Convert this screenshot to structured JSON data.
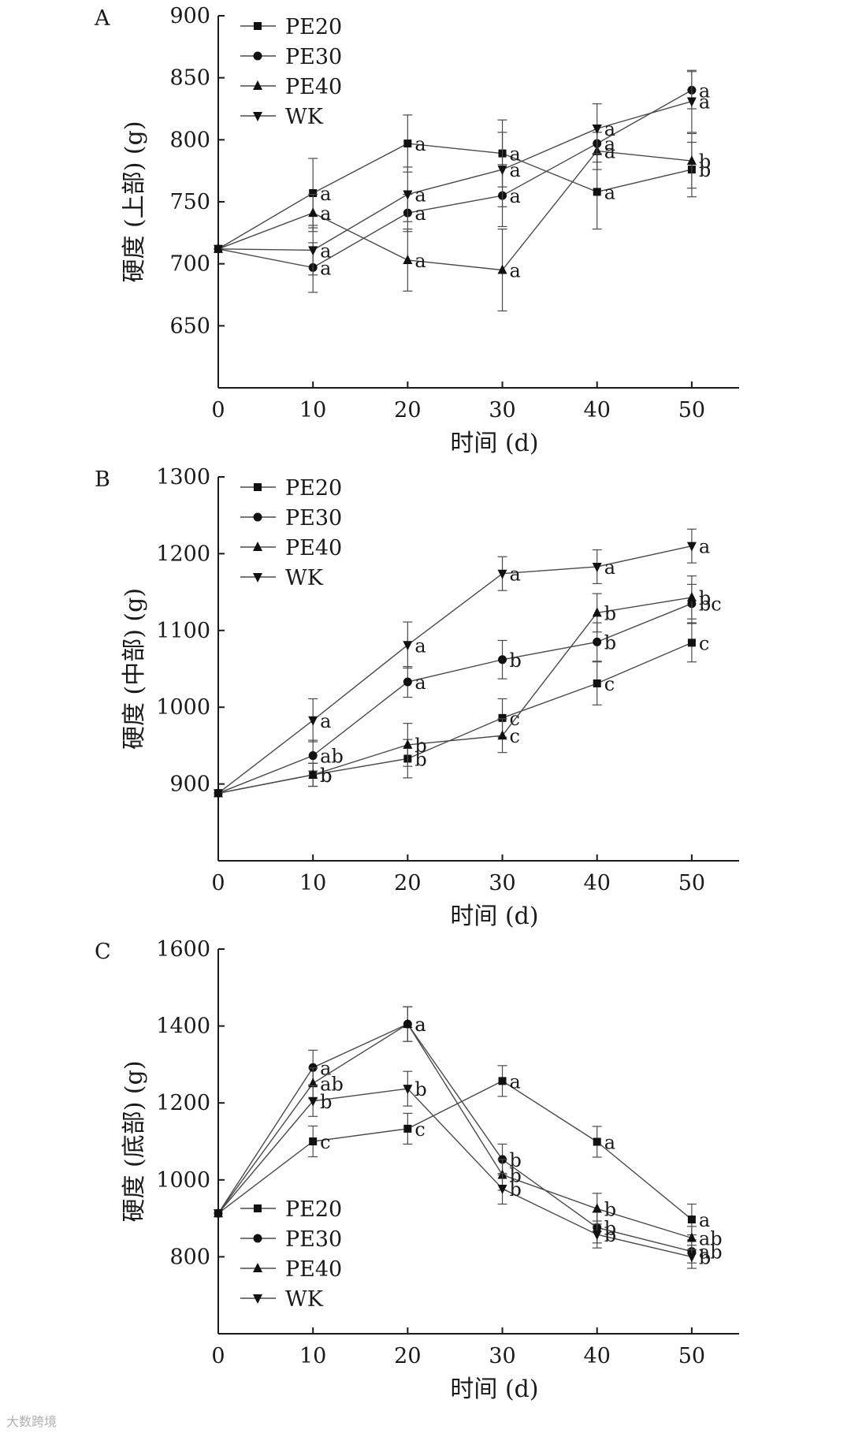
{
  "watermark": "大数跨境",
  "chart_data": [
    {
      "type": "line",
      "panel_label": "A",
      "xlabel": "时间 (d)",
      "ylabel": "硬度 (上部) (g)",
      "x": [
        0,
        10,
        20,
        30,
        40,
        50
      ],
      "xlim": [
        0,
        55
      ],
      "xticks": [
        0,
        10,
        20,
        30,
        40,
        50
      ],
      "ylim": [
        600,
        900
      ],
      "yticks": [
        650,
        700,
        750,
        800,
        850,
        900
      ],
      "legend_position": "top-left",
      "series": [
        {
          "name": "PE20",
          "marker": "square",
          "values": [
            712,
            757,
            797,
            789,
            758,
            776
          ],
          "errors": [
            0,
            28,
            23,
            27,
            30,
            22
          ],
          "letters": [
            "",
            "a",
            "a",
            "a",
            "a",
            "b"
          ]
        },
        {
          "name": "PE30",
          "marker": "circle",
          "values": [
            712,
            697,
            741,
            755,
            797,
            840
          ],
          "errors": [
            0,
            20,
            15,
            25,
            15,
            15
          ],
          "letters": [
            "",
            "a",
            "a",
            "a",
            "a",
            "a"
          ]
        },
        {
          "name": "PE40",
          "marker": "triangle-up",
          "values": [
            712,
            741,
            703,
            695,
            791,
            783
          ],
          "errors": [
            0,
            15,
            25,
            33,
            15,
            22
          ],
          "letters": [
            "",
            "a",
            "a",
            "a",
            "a",
            "b"
          ]
        },
        {
          "name": "WK",
          "marker": "triangle-down",
          "values": [
            712,
            711,
            756,
            776,
            809,
            831
          ],
          "errors": [
            0,
            20,
            22,
            30,
            20,
            25
          ],
          "letters": [
            "",
            "a",
            "a",
            "a",
            "a",
            "a"
          ]
        }
      ]
    },
    {
      "type": "line",
      "panel_label": "B",
      "xlabel": "时间 (d)",
      "ylabel": "硬度 (中部) (g)",
      "x": [
        0,
        10,
        20,
        30,
        40,
        50
      ],
      "xlim": [
        0,
        55
      ],
      "xticks": [
        0,
        10,
        20,
        30,
        40,
        50
      ],
      "ylim": [
        800,
        1300
      ],
      "yticks": [
        900,
        1000,
        1100,
        1200,
        1300
      ],
      "legend_position": "top-left",
      "series": [
        {
          "name": "PE20",
          "marker": "square",
          "values": [
            888,
            912,
            933,
            986,
            1031,
            1084
          ],
          "errors": [
            0,
            15,
            25,
            25,
            28,
            25
          ],
          "letters": [
            "",
            "b",
            "b",
            "c",
            "c",
            "c"
          ]
        },
        {
          "name": "PE30",
          "marker": "circle",
          "values": [
            888,
            937,
            1033,
            1062,
            1085,
            1135
          ],
          "errors": [
            0,
            20,
            20,
            25,
            25,
            25
          ],
          "letters": [
            "",
            "ab",
            "a",
            "b",
            "b",
            "bc"
          ]
        },
        {
          "name": "PE40",
          "marker": "triangle-up",
          "values": [
            888,
            912,
            951,
            963,
            1123,
            1143
          ],
          "errors": [
            0,
            15,
            28,
            22,
            25,
            28
          ],
          "letters": [
            "",
            "b",
            "b",
            "c",
            "b",
            "b"
          ]
        },
        {
          "name": "WK",
          "marker": "triangle-down",
          "values": [
            888,
            983,
            1081,
            1174,
            1183,
            1210
          ],
          "errors": [
            0,
            28,
            30,
            22,
            22,
            22
          ],
          "letters": [
            "",
            "a",
            "a",
            "a",
            "a",
            "a"
          ]
        }
      ]
    },
    {
      "type": "line",
      "panel_label": "C",
      "xlabel": "时间 (d)",
      "ylabel": "硬度 (底部) (g)",
      "x": [
        0,
        10,
        20,
        30,
        40,
        50
      ],
      "xlim": [
        0,
        55
      ],
      "xticks": [
        0,
        10,
        20,
        30,
        40,
        50
      ],
      "ylim": [
        600,
        1600
      ],
      "yticks": [
        800,
        1000,
        1200,
        1400,
        1600
      ],
      "legend_position": "bottom-left",
      "series": [
        {
          "name": "PE20",
          "marker": "square",
          "values": [
            913,
            1100,
            1133,
            1257,
            1099,
            897
          ],
          "errors": [
            0,
            40,
            40,
            40,
            40,
            40
          ],
          "letters": [
            "",
            "c",
            "c",
            "a",
            "a",
            "a"
          ]
        },
        {
          "name": "PE30",
          "marker": "circle",
          "values": [
            913,
            1292,
            1405,
            1053,
            876,
            814
          ],
          "errors": [
            0,
            45,
            45,
            40,
            40,
            30
          ],
          "letters": [
            "",
            "a",
            "a",
            "b",
            "b",
            "ab"
          ]
        },
        {
          "name": "PE40",
          "marker": "triangle-up",
          "values": [
            913,
            1251,
            1405,
            1013,
            925,
            849
          ],
          "errors": [
            0,
            40,
            45,
            40,
            40,
            30
          ],
          "letters": [
            "",
            "ab",
            "a",
            "b",
            "b",
            "ab"
          ]
        },
        {
          "name": "WK",
          "marker": "triangle-down",
          "values": [
            913,
            1205,
            1237,
            977,
            858,
            800
          ],
          "errors": [
            0,
            40,
            45,
            40,
            35,
            30
          ],
          "letters": [
            "",
            "b",
            "b",
            "b",
            "b",
            "b"
          ]
        }
      ]
    }
  ]
}
